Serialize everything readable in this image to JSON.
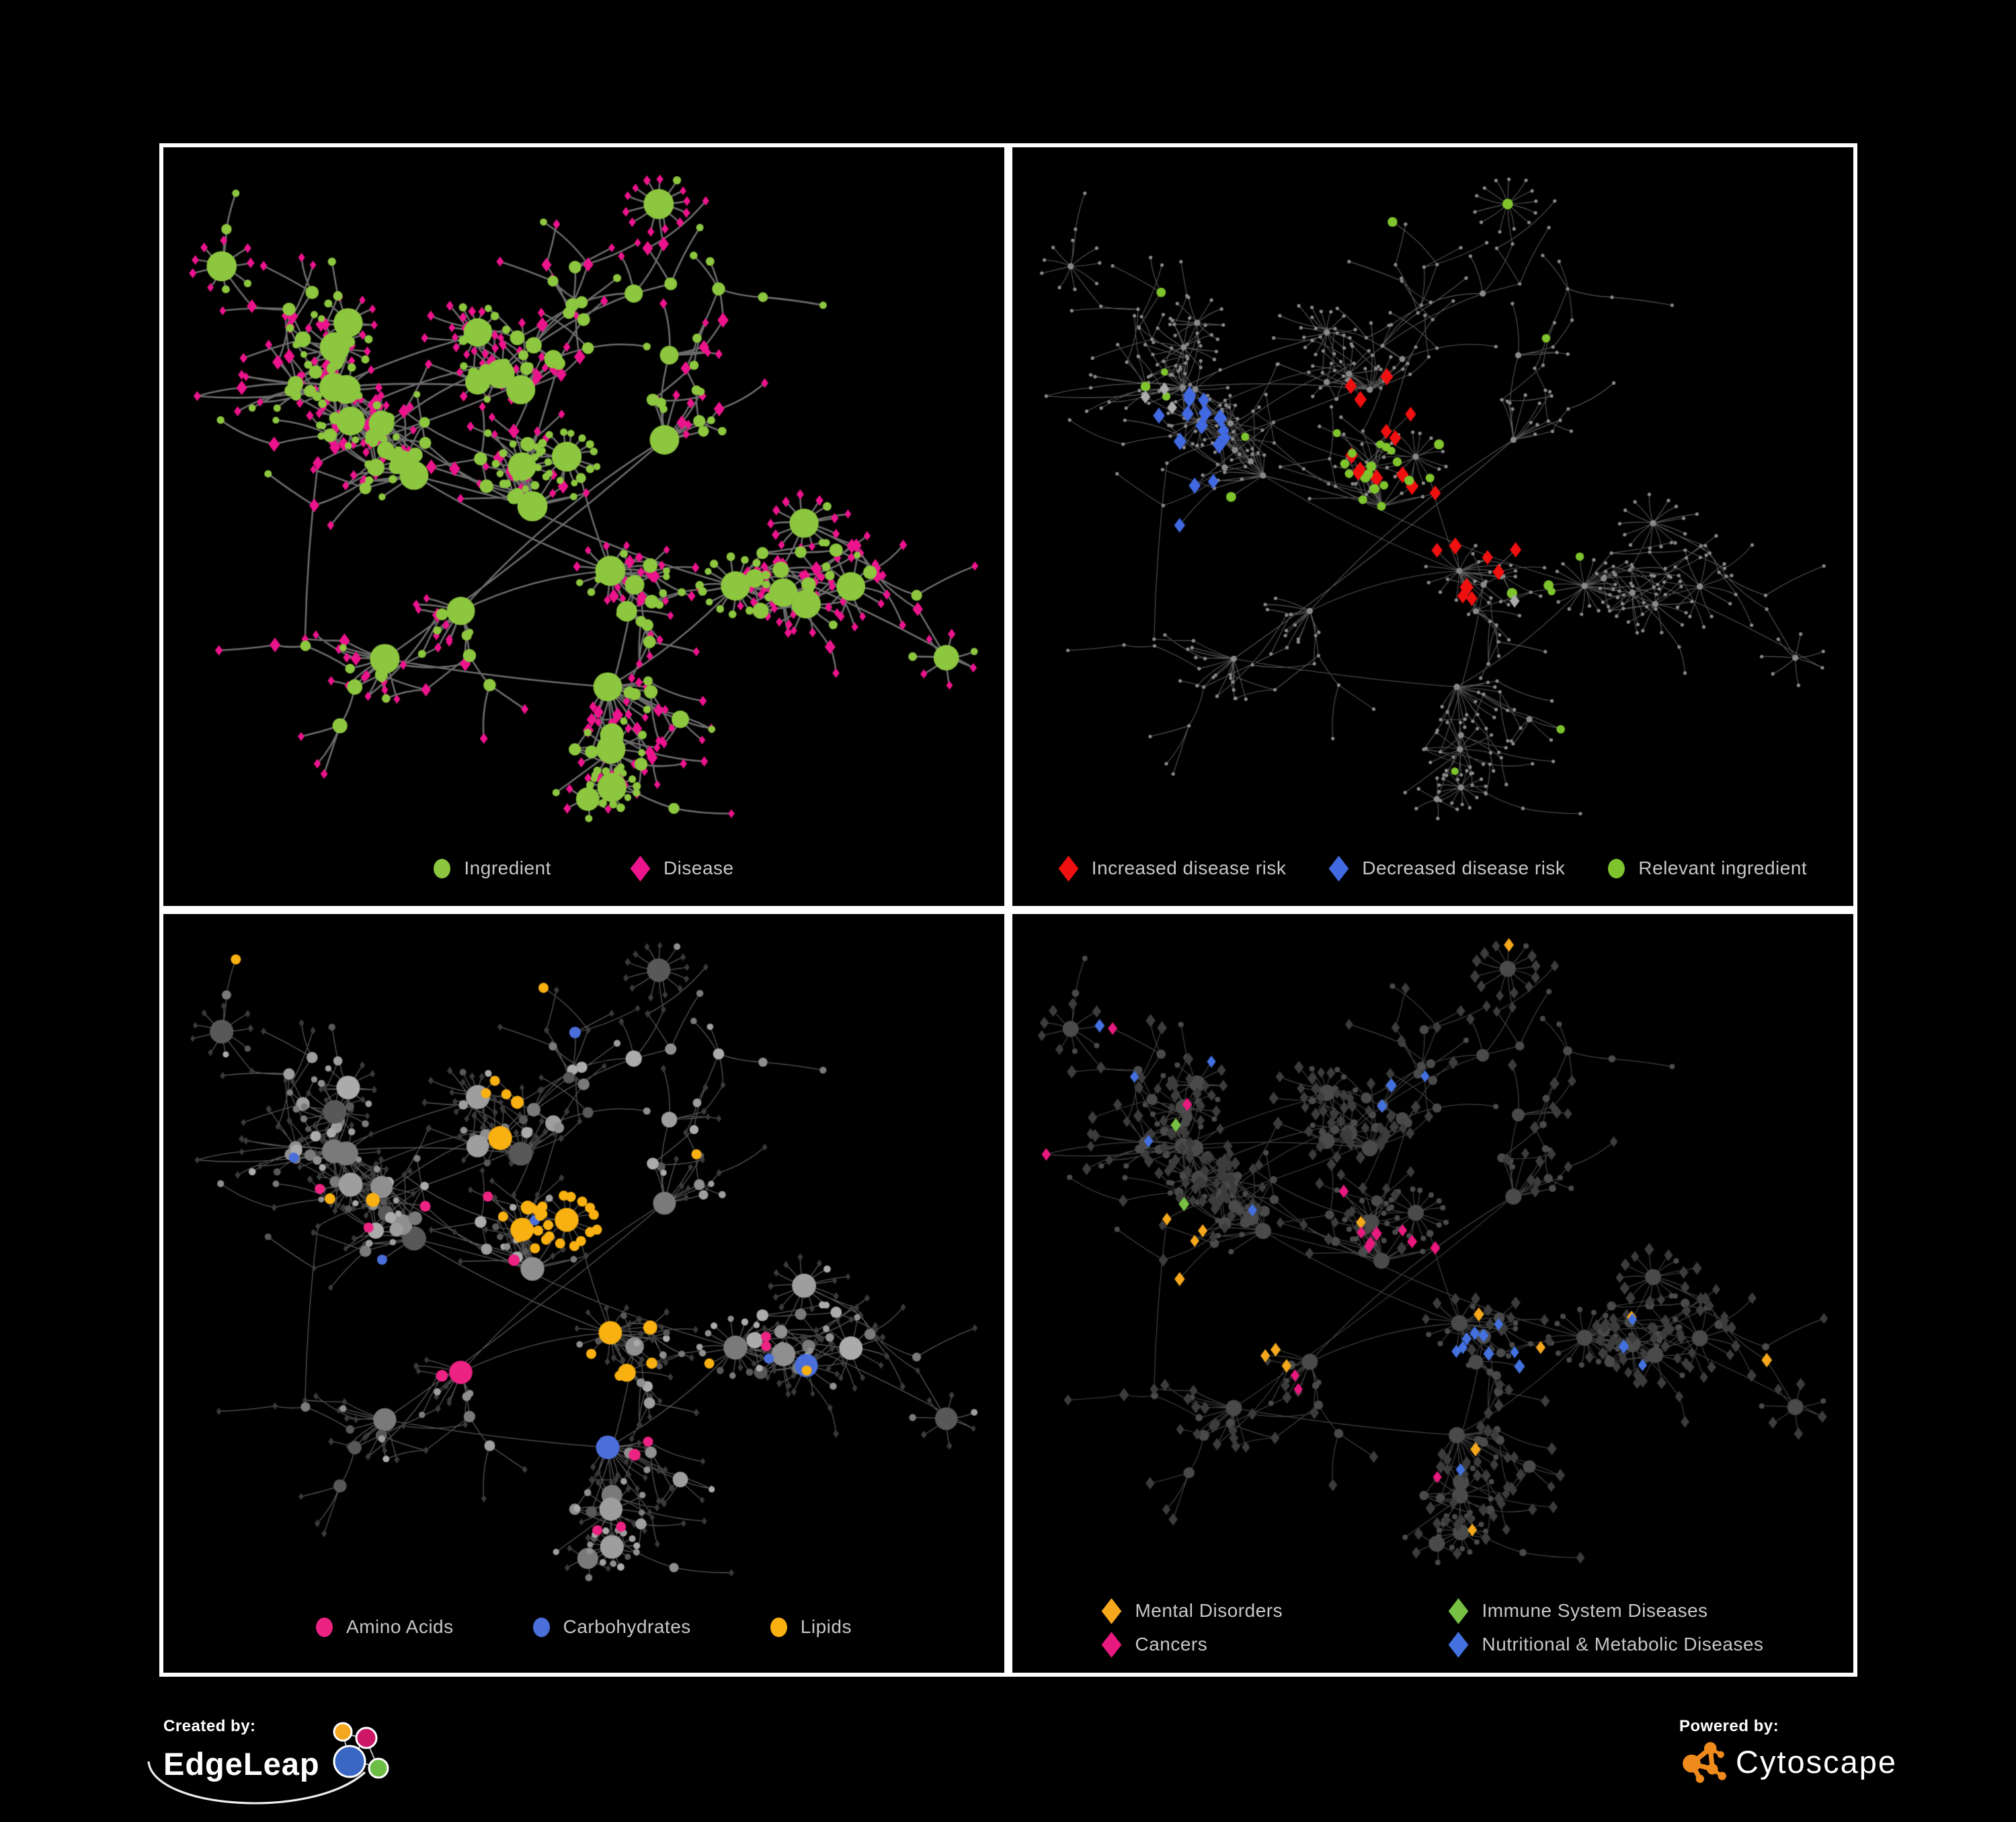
{
  "figure": {
    "background": "#000000",
    "panel_border": "#FFFFFF",
    "legend_text_color": "#C7C7C7"
  },
  "footer": {
    "created_by": "Created by:",
    "edgeleap": "EdgeLeap",
    "powered_by": "Powered by:",
    "cytoscape": "Cytoscape",
    "edgeleap_glyph_colors": [
      "#F2A71F",
      "#CC1766",
      "#3A66C4",
      "#6CBE45"
    ],
    "cytoscape_orange": "#EF8B1D"
  },
  "chart_data": {
    "type": "network",
    "description": "Four styled views of one ingredient-disease association network on black panels",
    "shared_layout": {
      "seed": 11,
      "node_count": 470,
      "fan_clusters": 24,
      "cross_links": 70
    },
    "panels": [
      {
        "position": "top-left",
        "legend": [
          {
            "shape": "circle",
            "color": "#8DC63F",
            "label": "Ingredient"
          },
          {
            "shape": "diamond",
            "color": "#EC148C",
            "label": "Disease"
          }
        ],
        "legend_layout": "row",
        "style": {
          "mode": "plain",
          "edge_color": "#7E7E7E",
          "edge_width": 2.6,
          "edge_alpha": 0.85,
          "ingredient_color": "#8DC63F",
          "disease_color": "#EC148C"
        }
      },
      {
        "position": "top-right",
        "legend": [
          {
            "shape": "diamond",
            "color": "#F01010",
            "label": "Increased disease risk"
          },
          {
            "shape": "diamond",
            "color": "#4169E1",
            "label": "Decreased disease risk"
          },
          {
            "shape": "circle",
            "color": "#7FC42D",
            "label": "Relevant ingredient"
          }
        ],
        "legend_layout": "row tight",
        "style": {
          "mode": "risk",
          "edge_color": "#8F8F8F",
          "edge_width": 1.1,
          "edge_alpha": 0.6,
          "base_node_color": "#8A8A8A",
          "disease_rules": [
            {
              "color": "#F01010",
              "centers": [
                [
                  0.45,
                  0.4
                ],
                [
                  0.53,
                  0.47
                ],
                [
                  0.44,
                  0.54
                ],
                [
                  0.6,
                  0.44
                ],
                [
                  0.56,
                  0.56
                ]
              ],
              "radius": 0.08,
              "prob": 0.32
            },
            {
              "color": "#F01010",
              "centers": [
                [
                  0.63,
                  0.78
                ],
                [
                  0.68,
                  0.84
                ],
                [
                  0.12,
                  0.47
                ]
              ],
              "radius": 0.03,
              "prob": 0.7
            },
            {
              "color": "#4169E1",
              "centers": [
                [
                  0.2,
                  0.4
                ],
                [
                  0.21,
                  0.5
                ]
              ],
              "radius": 0.055,
              "prob": 0.4
            },
            {
              "color": "#4169E1",
              "centers": [
                [
                  0.84,
                  0.42
                ]
              ],
              "radius": 0.035,
              "prob": 0.8
            },
            {
              "color": "#ABABAB",
              "centers": [
                [
                  0.17,
                  0.36
                ],
                [
                  0.33,
                  0.52
                ],
                [
                  0.52,
                  0.55
                ],
                [
                  0.62,
                  0.64
                ],
                [
                  0.47,
                  0.5
                ],
                [
                  0.7,
                  0.68
                ],
                [
                  0.3,
                  0.7
                ]
              ],
              "radius": 0.025,
              "prob": 0.6
            }
          ],
          "ingredient_rules": [
            {
              "color": "#7FC42D",
              "centers": [
                [
                  0.35,
                  0.42
                ],
                [
                  0.46,
                  0.47
                ],
                [
                  0.55,
                  0.44
                ],
                [
                  0.3,
                  0.52
                ],
                [
                  0.59,
                  0.56
                ],
                [
                  0.42,
                  0.57
                ]
              ],
              "radius": 0.09,
              "prob": 0.35
            },
            {
              "color": "#7FC42D",
              "prob": 0.025
            }
          ]
        }
      },
      {
        "position": "bottom-left",
        "legend": [
          {
            "shape": "circle",
            "color": "#EC2383",
            "label": "Amino Acids"
          },
          {
            "shape": "circle",
            "color": "#4A6FDB",
            "label": "Carbohydrates"
          },
          {
            "shape": "circle",
            "color": "#F9B011",
            "label": "Lipids"
          }
        ],
        "legend_layout": "row mid",
        "style": {
          "mode": "classes_circles",
          "edge_color": "#ABABAB",
          "edge_width": 1.3,
          "edge_alpha": 0.5,
          "disease_color": "#3A3A3A",
          "disease_size": 5,
          "gray_shades": [
            "#9E9E9E",
            "#8F8F8F",
            "#ABABAB",
            "#7A7A7A",
            "#585858"
          ],
          "ingredient_rules": [
            {
              "color": "#F9B011",
              "centers": [
                [
                  0.47,
                  0.42
                ]
              ],
              "radius": 0.065,
              "prob": 0.8
            },
            {
              "color": "#F9B011",
              "centers": [
                [
                  0.4,
                  0.54
                ],
                [
                  0.41,
                  0.22
                ],
                [
                  0.55,
                  0.62
                ]
              ],
              "radius": 0.045,
              "prob": 0.5
            },
            {
              "color": "#F9B011",
              "prob": 0.05
            },
            {
              "color": "#4A6FDB",
              "centers": [
                [
                  0.49,
                  0.44
                ]
              ],
              "radius": 0.07,
              "prob": 0.3
            },
            {
              "color": "#4A6FDB",
              "prob": 0.022
            },
            {
              "color": "#EC2383",
              "prob": 0.065
            }
          ]
        }
      },
      {
        "position": "bottom-right",
        "legend": [
          {
            "shape": "diamond",
            "color": "#F5A81C",
            "label": "Mental Disorders"
          },
          {
            "shape": "diamond",
            "color": "#76C043",
            "label": "Immune System Diseases"
          },
          {
            "shape": "diamond",
            "color": "#E8197F",
            "label": "Cancers"
          },
          {
            "shape": "diamond",
            "color": "#4371E0",
            "label": "Nutritional & Metabolic Diseases"
          }
        ],
        "legend_layout": "grid2",
        "style": {
          "mode": "classes_diamonds",
          "edge_color": "#909090",
          "edge_width": 1.2,
          "edge_alpha": 0.45,
          "ingredient_color": "#4A4A4A",
          "disease_default": "#3C3C3C",
          "disease_rules": [
            {
              "color": "#F5A81C",
              "centers": [
                [
                  0.21,
                  0.55
                ],
                [
                  0.26,
                  0.62
                ],
                [
                  0.17,
                  0.5
                ]
              ],
              "radius": 0.08,
              "prob": 0.85
            },
            {
              "color": "#F5A81C",
              "prob": 0.022
            },
            {
              "color": "#E8197F",
              "centers": [
                [
                  0.42,
                  0.57
                ],
                [
                  0.47,
                  0.49
                ],
                [
                  0.4,
                  0.67
                ],
                [
                  0.44,
                  0.75
                ]
              ],
              "radius": 0.065,
              "prob": 0.6
            },
            {
              "color": "#E8197F",
              "centers": [
                [
                  0.87,
                  0.3
                ]
              ],
              "radius": 0.04,
              "prob": 0.65
            },
            {
              "color": "#E8197F",
              "prob": 0.015
            },
            {
              "color": "#4371E0",
              "centers": [
                [
                  0.56,
                  0.64
                ],
                [
                  0.72,
                  0.4
                ],
                [
                  0.78,
                  0.2
                ],
                [
                  0.47,
                  0.1
                ],
                [
                  0.3,
                  0.9
                ],
                [
                  0.74,
                  0.82
                ],
                [
                  0.15,
                  0.15
                ],
                [
                  0.85,
                  0.42
                ]
              ],
              "radius": 0.05,
              "prob": 0.55
            },
            {
              "color": "#4371E0",
              "prob": 0.028
            },
            {
              "color": "#76C043",
              "prob": 0.022
            }
          ]
        }
      }
    ]
  }
}
